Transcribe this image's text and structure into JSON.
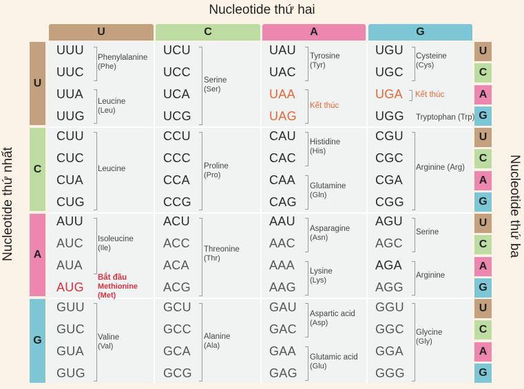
{
  "axis": {
    "top": "Nucleotide thứ hai",
    "left": "Nucleotide thứ nhất",
    "right": "Nucleotide thứ ba"
  },
  "col_heads": [
    "U",
    "C",
    "A",
    "G"
  ],
  "row_heads": [
    "U",
    "C",
    "A",
    "G"
  ],
  "third_bases": [
    "U",
    "C",
    "A",
    "G"
  ],
  "colors": {
    "U": "#c4a17e",
    "C": "#bcdca2",
    "A": "#ec87b0",
    "G": "#7cc6d6",
    "stop": "#e6673a",
    "start": "#d9313e"
  },
  "codons": [
    [
      "UUU",
      "UCU",
      "UAU",
      "UGU"
    ],
    [
      "UUC",
      "UCC",
      "UAC",
      "UGC"
    ],
    [
      "UUA",
      "UCA",
      "UAA",
      "UGA"
    ],
    [
      "UUG",
      "UCG",
      "UAG",
      "UGG"
    ],
    [
      "CUU",
      "CCU",
      "CAU",
      "CGU"
    ],
    [
      "CUC",
      "CCC",
      "CAC",
      "CGC"
    ],
    [
      "CUA",
      "CCA",
      "CAA",
      "CGA"
    ],
    [
      "CUG",
      "CCG",
      "CAG",
      "CGG"
    ],
    [
      "AUU",
      "ACU",
      "AAU",
      "AGU"
    ],
    [
      "AUC",
      "ACC",
      "AAC",
      "AGC"
    ],
    [
      "AUA",
      "ACA",
      "AAA",
      "AGA"
    ],
    [
      "AUG",
      "ACG",
      "AAG",
      "AGG"
    ],
    [
      "GUU",
      "GCU",
      "GAU",
      "GGU"
    ],
    [
      "GUC",
      "GCC",
      "GAC",
      "GGC"
    ],
    [
      "GUA",
      "GCA",
      "GAA",
      "GGA"
    ],
    [
      "GUG",
      "GCG",
      "GAG",
      "GGG"
    ]
  ],
  "amino": {
    "phe": {
      "name": "Phenylalanine",
      "abbr": "(Phe)"
    },
    "leu1": {
      "name": "Leucine",
      "abbr": "(Leu)"
    },
    "ser": {
      "name": "Serine",
      "abbr": "(Ser)"
    },
    "tyr": {
      "name": "Tyrosine",
      "abbr": "(Tyr)"
    },
    "stop_uaa": {
      "name": "Kết thúc"
    },
    "cys": {
      "name": "Cysteine",
      "abbr": "(Cys)"
    },
    "stop_uga": {
      "name": "Kết thúc"
    },
    "trp": {
      "name": "Tryptophan (Trp)"
    },
    "leu2": {
      "name": "Leucine"
    },
    "pro": {
      "name": "Proline",
      "abbr": "(Pro)"
    },
    "his": {
      "name": "Histidine",
      "abbr": "(His)"
    },
    "gln": {
      "name": "Glutamine",
      "abbr": "(Gln)"
    },
    "arg1": {
      "name": "Arginine (Arg)"
    },
    "ile": {
      "name": "Isoleucine",
      "abbr": "(Ile)"
    },
    "met": {
      "name": "Methionine",
      "abbr": "(Met)",
      "label": "Bắt đầu"
    },
    "thr": {
      "name": "Threonine",
      "abbr": "(Thr)"
    },
    "asn": {
      "name": "Asparagine",
      "abbr": "(Asn)"
    },
    "lys": {
      "name": "Lysine",
      "abbr": "(Lys)"
    },
    "ser2": {
      "name": "Serine"
    },
    "arg2": {
      "name": "Arginine"
    },
    "val": {
      "name": "Valine",
      "abbr": "(Val)"
    },
    "ala": {
      "name": "Alanine",
      "abbr": "(Ala)"
    },
    "asp": {
      "name": "Aspartic acid",
      "abbr": "(Asp)"
    },
    "glu": {
      "name": "Glutamic acid",
      "abbr": "(Glu)"
    },
    "gly": {
      "name": "Glycine",
      "abbr": "(Gly)"
    }
  }
}
